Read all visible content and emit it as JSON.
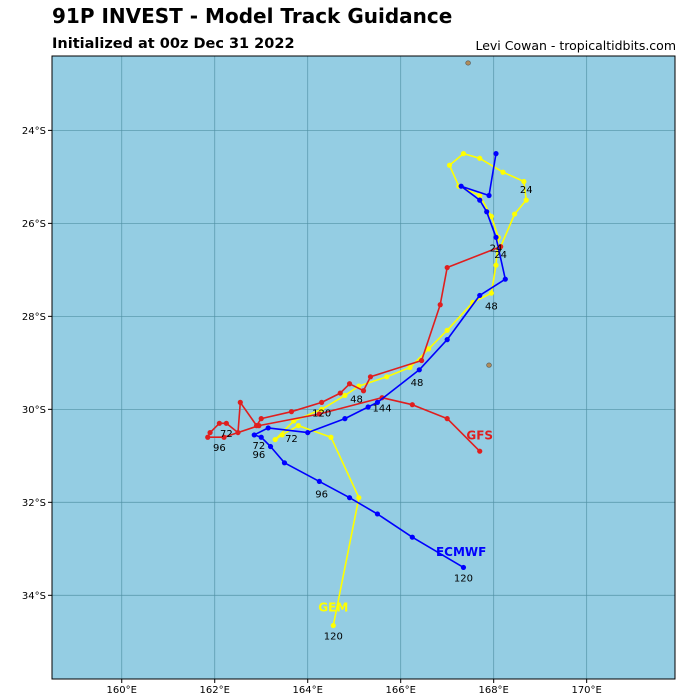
{
  "header": {
    "title": "91P INVEST - Model Track Guidance",
    "subtitle": "Initialized at 00z Dec 31 2022",
    "credit": "Levi Cowan - tropicaltidbits.com"
  },
  "map": {
    "lon_range": [
      158.5,
      171.9
    ],
    "lat_range": [
      -35.8,
      -22.4
    ],
    "ocean_color": "#94cde3",
    "grid_color": "#4f8fa3",
    "lon_ticks": [
      160,
      162,
      164,
      166,
      168,
      170
    ],
    "lon_tick_labels": [
      "160°E",
      "162°E",
      "164°E",
      "166°E",
      "168°E",
      "170°E"
    ],
    "lat_ticks": [
      -24,
      -26,
      -28,
      -30,
      -32,
      -34
    ],
    "lat_tick_labels": [
      "24°S",
      "26°S",
      "28°S",
      "30°S",
      "32°S",
      "34°S"
    ],
    "islands": [
      {
        "name": "small-island",
        "lon": 167.45,
        "lat": -22.55
      },
      {
        "name": "small-islet",
        "lon": 167.9,
        "lat": -29.05
      }
    ]
  },
  "tracks": [
    {
      "model": "GEM",
      "color": "#ffff00",
      "label_color": "#ffff00",
      "label_pos": {
        "lon": 164.55,
        "lat": -34.35
      },
      "points": [
        [
          168.15,
          -26.5
        ],
        [
          168.45,
          -25.8
        ],
        [
          168.7,
          -25.5
        ],
        [
          168.65,
          -25.1
        ],
        [
          168.2,
          -24.9
        ],
        [
          167.7,
          -24.6
        ],
        [
          167.35,
          -24.5
        ],
        [
          167.05,
          -24.75
        ],
        [
          167.25,
          -25.2
        ],
        [
          167.7,
          -25.4
        ],
        [
          167.95,
          -25.85
        ],
        [
          168.1,
          -26.3
        ],
        [
          168.05,
          -26.9
        ],
        [
          167.95,
          -27.5
        ],
        [
          167.55,
          -27.7
        ],
        [
          167.0,
          -28.3
        ],
        [
          166.6,
          -28.7
        ],
        [
          166.2,
          -29.1
        ],
        [
          165.7,
          -29.3
        ],
        [
          165.1,
          -29.5
        ],
        [
          164.8,
          -29.7
        ],
        [
          164.3,
          -30.0
        ],
        [
          163.7,
          -30.25
        ],
        [
          163.3,
          -30.65
        ],
        [
          163.45,
          -30.55
        ],
        [
          163.8,
          -30.35
        ],
        [
          164.5,
          -30.6
        ],
        [
          165.1,
          -31.9
        ],
        [
          164.55,
          -34.65
        ]
      ],
      "hour_labels": [
        {
          "text": "24",
          "lon": 168.7,
          "lat": -25.35
        },
        {
          "text": "120",
          "lon": 164.55,
          "lat": -34.95
        }
      ]
    },
    {
      "model": "GFS",
      "color": "#e01e1e",
      "label_color": "#e01e1e",
      "label_pos": {
        "lon": 167.7,
        "lat": -30.65
      },
      "points": [
        [
          168.15,
          -26.5
        ],
        [
          167.0,
          -26.95
        ],
        [
          166.85,
          -27.75
        ],
        [
          166.45,
          -28.95
        ],
        [
          165.35,
          -29.3
        ],
        [
          165.2,
          -29.6
        ],
        [
          164.9,
          -29.45
        ],
        [
          164.7,
          -29.65
        ],
        [
          164.3,
          -29.85
        ],
        [
          163.65,
          -30.05
        ],
        [
          163.0,
          -30.2
        ],
        [
          162.9,
          -30.35
        ],
        [
          162.55,
          -29.85
        ],
        [
          162.5,
          -30.5
        ],
        [
          162.25,
          -30.3
        ],
        [
          162.1,
          -30.3
        ],
        [
          161.9,
          -30.5
        ],
        [
          161.85,
          -30.6
        ],
        [
          162.2,
          -30.6
        ],
        [
          162.95,
          -30.35
        ],
        [
          164.25,
          -30.1
        ],
        [
          165.6,
          -29.75
        ],
        [
          166.25,
          -29.9
        ],
        [
          167.0,
          -30.2
        ],
        [
          167.7,
          -30.9
        ]
      ],
      "hour_labels": [
        {
          "text": "24",
          "lon": 168.05,
          "lat": -26.6
        },
        {
          "text": "72",
          "lon": 162.25,
          "lat": -30.6
        },
        {
          "text": "96",
          "lon": 162.1,
          "lat": -30.9
        },
        {
          "text": "120",
          "lon": 164.3,
          "lat": -30.15
        }
      ]
    },
    {
      "model": "ECMWF",
      "color": "#0000ff",
      "label_color": "#0000ff",
      "label_pos": {
        "lon": 167.3,
        "lat": -33.15
      },
      "points": [
        [
          168.05,
          -24.5
        ],
        [
          167.9,
          -25.4
        ],
        [
          167.3,
          -25.2
        ],
        [
          167.7,
          -25.5
        ],
        [
          167.85,
          -25.75
        ],
        [
          168.05,
          -26.3
        ],
        [
          168.25,
          -27.2
        ],
        [
          167.7,
          -27.55
        ],
        [
          167.0,
          -28.5
        ],
        [
          166.4,
          -29.15
        ],
        [
          165.5,
          -29.85
        ],
        [
          165.3,
          -29.95
        ],
        [
          164.8,
          -30.2
        ],
        [
          164.0,
          -30.5
        ],
        [
          163.15,
          -30.4
        ],
        [
          162.85,
          -30.55
        ],
        [
          163.0,
          -30.6
        ],
        [
          163.2,
          -30.8
        ],
        [
          163.5,
          -31.15
        ],
        [
          164.25,
          -31.55
        ],
        [
          164.9,
          -31.9
        ],
        [
          165.5,
          -32.25
        ],
        [
          166.25,
          -32.75
        ],
        [
          167.35,
          -33.4
        ]
      ],
      "hour_labels": [
        {
          "text": "24",
          "lon": 168.15,
          "lat": -26.75
        },
        {
          "text": "48",
          "lon": 167.95,
          "lat": -27.85
        },
        {
          "text": "48",
          "lon": 166.35,
          "lat": -29.5
        },
        {
          "text": "48",
          "lon": 165.05,
          "lat": -29.85
        },
        {
          "text": "144",
          "lon": 165.6,
          "lat": -30.05
        },
        {
          "text": "72",
          "lon": 163.65,
          "lat": -30.7
        },
        {
          "text": "72",
          "lon": 162.95,
          "lat": -30.85
        },
        {
          "text": "96",
          "lon": 162.95,
          "lat": -31.05
        },
        {
          "text": "96",
          "lon": 164.3,
          "lat": -31.9
        },
        {
          "text": "120",
          "lon": 167.35,
          "lat": -33.7
        }
      ]
    }
  ]
}
